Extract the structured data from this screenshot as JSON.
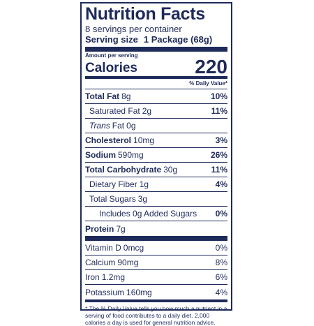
{
  "title": "Nutrition Facts",
  "servings_per_container": "8 servings per container",
  "serving_size_label": "Serving size",
  "serving_size_value": "1 Package (68g)",
  "amount_per_serving": "Amount per serving",
  "calories_label": "Calories",
  "calories_value": "220",
  "daily_value_header": "% Daily Value*",
  "nutrients": [
    {
      "name": "Total Fat",
      "amount": "8g",
      "dv": "10%"
    },
    {
      "name": "Saturated Fat",
      "amount": "2g",
      "dv": "11%"
    },
    {
      "name": "Trans",
      "name_suffix": "Fat",
      "amount": "0g",
      "dv": ""
    },
    {
      "name": "Cholesterol",
      "amount": "10mg",
      "dv": "3%"
    },
    {
      "name": "Sodium",
      "amount": "590mg",
      "dv": "26%"
    },
    {
      "name": "Total Carbohydrate",
      "amount": "30g",
      "dv": "11%"
    },
    {
      "name": "Dietary Fiber",
      "amount": "1g",
      "dv": "4%"
    },
    {
      "name": "Total Sugars",
      "amount": "3g",
      "dv": ""
    },
    {
      "name": "Includes 0g Added Sugars",
      "amount": "",
      "dv": "0%"
    },
    {
      "name": "Protein",
      "amount": "7g",
      "dv": ""
    }
  ],
  "vitamins": [
    {
      "name": "Vitamin D",
      "amount": "0mcg",
      "dv": "0%"
    },
    {
      "name": "Calcium",
      "amount": "90mg",
      "dv": "8%"
    },
    {
      "name": "Iron",
      "amount": "1.2mg",
      "dv": "6%"
    },
    {
      "name": "Potassium",
      "amount": "160mg",
      "dv": "4%"
    }
  ],
  "footnote": "* The % Daily Value tells you how much a nutrient in a serving of food contributes to a daily diet. 2,000 calories a day is used for general nutrition advice.",
  "colors": {
    "ink": "#1e2a5a",
    "background": "#ffffff"
  }
}
